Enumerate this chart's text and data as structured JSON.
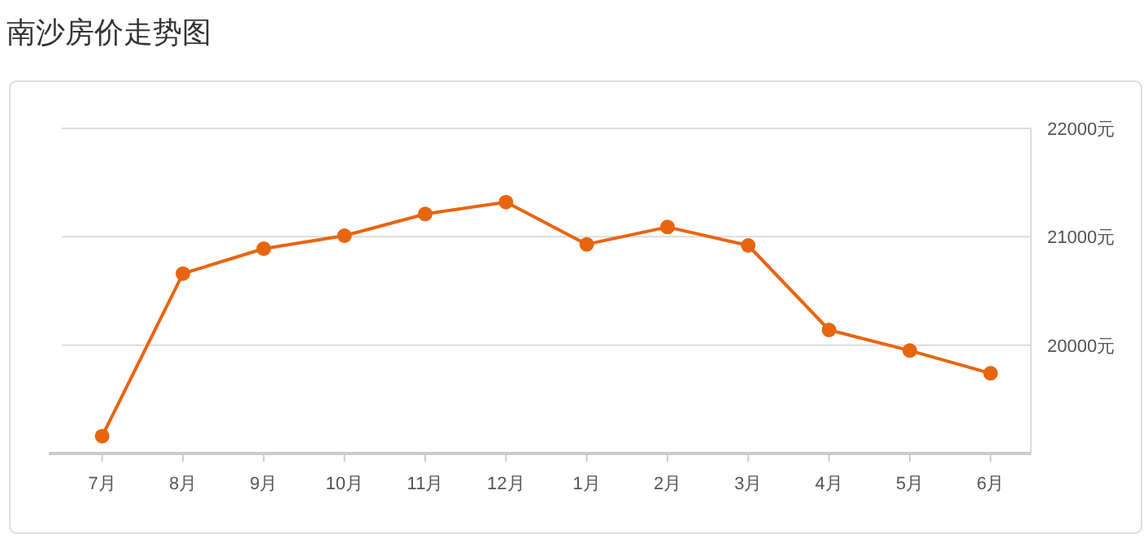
{
  "chart_data": {
    "type": "line",
    "title": "南沙房价走势图",
    "categories": [
      "7月",
      "8月",
      "9月",
      "10月",
      "11月",
      "12月",
      "1月",
      "2月",
      "3月",
      "4月",
      "5月",
      "6月"
    ],
    "series": [
      {
        "color": "#e8650f",
        "values": [
          19160,
          20660,
          20890,
          21010,
          21210,
          21320,
          20930,
          21090,
          20920,
          20140,
          19950,
          19740
        ]
      }
    ],
    "ylim": [
      19000,
      22000
    ],
    "yticks": [
      {
        "value": 20000,
        "label": "20000元"
      },
      {
        "value": 21000,
        "label": "21000元"
      },
      {
        "value": 22000,
        "label": "22000元"
      }
    ],
    "grid": "y",
    "marker": "circle",
    "line_style": "solid"
  }
}
